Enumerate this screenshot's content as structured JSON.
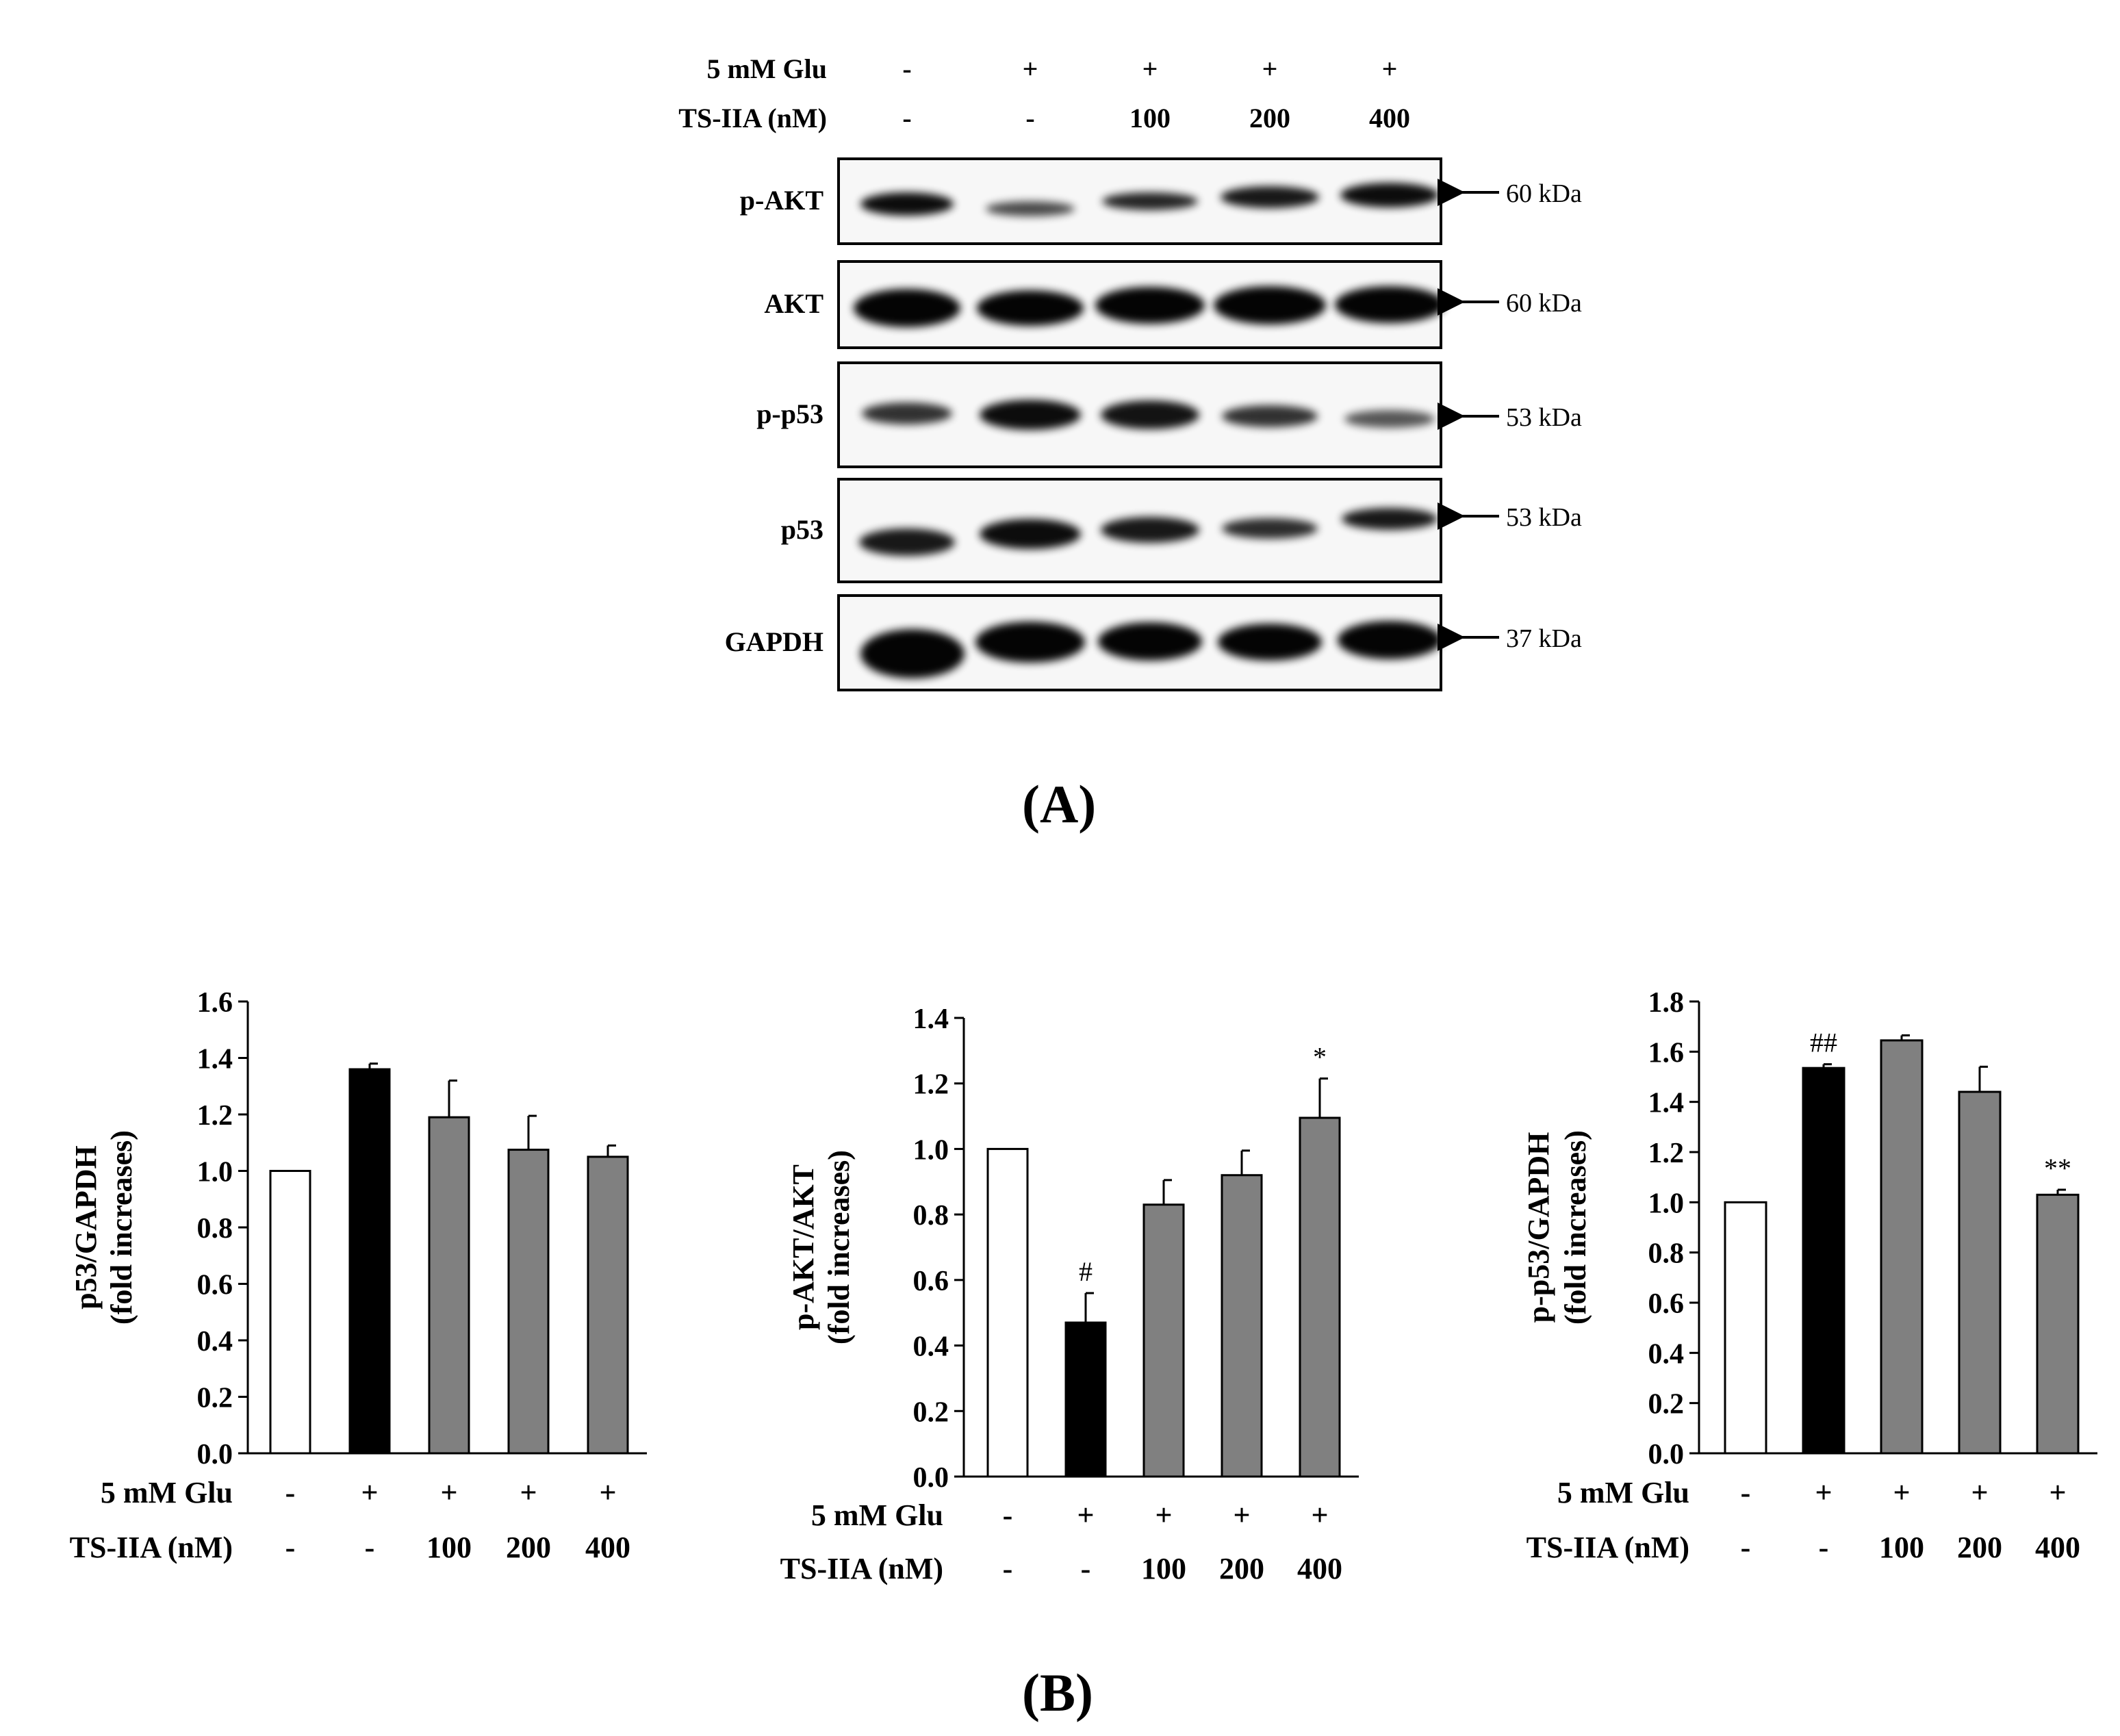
{
  "western_blot": {
    "treatments": [
      {
        "label": "5 mM Glu",
        "values": [
          "-",
          "+",
          "+",
          "+",
          "+"
        ]
      },
      {
        "label": "TS-IIA (nM)",
        "values": [
          "-",
          "-",
          "100",
          "200",
          "400"
        ]
      }
    ],
    "blots": [
      {
        "name": "p-AKT",
        "kda": "60 kDa"
      },
      {
        "name": "AKT",
        "kda": "60 kDa"
      },
      {
        "name": "p-p53",
        "kda": "53 kDa"
      },
      {
        "name": "p53",
        "kda": "53 kDa"
      },
      {
        "name": "GAPDH",
        "kda": "37 kDa"
      }
    ],
    "panel_label": "(A)"
  },
  "panel_b_label": "(B)",
  "colors": {
    "control": "#ffffff",
    "glu": "#000000",
    "treated": "#808080",
    "stroke": "#000000"
  },
  "chart_data": [
    {
      "type": "bar",
      "title": "",
      "ylabel_line1": "p53/GAPDH",
      "ylabel_line2": "(fold increases)",
      "xlabel": "",
      "categories": [
        "1",
        "2",
        "3",
        "4",
        "5"
      ],
      "values": [
        1.0,
        1.36,
        1.19,
        1.075,
        1.05
      ],
      "errors": [
        0,
        0.02,
        0.13,
        0.12,
        0.04
      ],
      "annotations": [
        "",
        "",
        "",
        "",
        ""
      ],
      "ylim": [
        0,
        1.6
      ],
      "yticks": [
        "0.0",
        "0.2",
        "0.4",
        "0.6",
        "0.8",
        "1.0",
        "1.2",
        "1.4",
        "1.6"
      ],
      "treatments": [
        {
          "label": "5 mM Glu",
          "values": [
            "-",
            "+",
            "+",
            "+",
            "+"
          ]
        },
        {
          "label": "TS-IIA (nM)",
          "values": [
            "-",
            "-",
            "100",
            "200",
            "400"
          ]
        }
      ]
    },
    {
      "type": "bar",
      "title": "",
      "ylabel_line1": "p-AKT/AKT",
      "ylabel_line2": "(fold increases)",
      "xlabel": "",
      "categories": [
        "1",
        "2",
        "3",
        "4",
        "5"
      ],
      "values": [
        1.0,
        0.47,
        0.83,
        0.92,
        1.095
      ],
      "errors": [
        0,
        0.09,
        0.075,
        0.075,
        0.12
      ],
      "annotations": [
        "",
        "#",
        "",
        "",
        "*"
      ],
      "ylim": [
        0,
        1.4
      ],
      "yticks": [
        "0.0",
        "0.2",
        "0.4",
        "0.6",
        "0.8",
        "1.0",
        "1.2",
        "1.4"
      ],
      "treatments": [
        {
          "label": "5 mM Glu",
          "values": [
            "-",
            "+",
            "+",
            "+",
            "+"
          ]
        },
        {
          "label": "TS-IIA (nM)",
          "values": [
            "-",
            "-",
            "100",
            "200",
            "400"
          ]
        }
      ]
    },
    {
      "type": "bar",
      "title": "",
      "ylabel_line1": "p-p53/GAPDH",
      "ylabel_line2": "(fold increases)",
      "xlabel": "",
      "categories": [
        "1",
        "2",
        "3",
        "4",
        "5"
      ],
      "values": [
        1.0,
        1.535,
        1.645,
        1.44,
        1.03
      ],
      "errors": [
        0,
        0.015,
        0.02,
        0.1,
        0.02
      ],
      "annotations": [
        "",
        "##",
        "",
        "",
        "**"
      ],
      "ylim": [
        0,
        1.8
      ],
      "yticks": [
        "0.0",
        "0.2",
        "0.4",
        "0.6",
        "0.8",
        "1.0",
        "1.2",
        "1.4",
        "1.6",
        "1.8"
      ],
      "treatments": [
        {
          "label": "5 mM Glu",
          "values": [
            "-",
            "+",
            "+",
            "+",
            "+"
          ]
        },
        {
          "label": "TS-IIA (nM)",
          "values": [
            "-",
            "-",
            "100",
            "200",
            "400"
          ]
        }
      ]
    }
  ]
}
